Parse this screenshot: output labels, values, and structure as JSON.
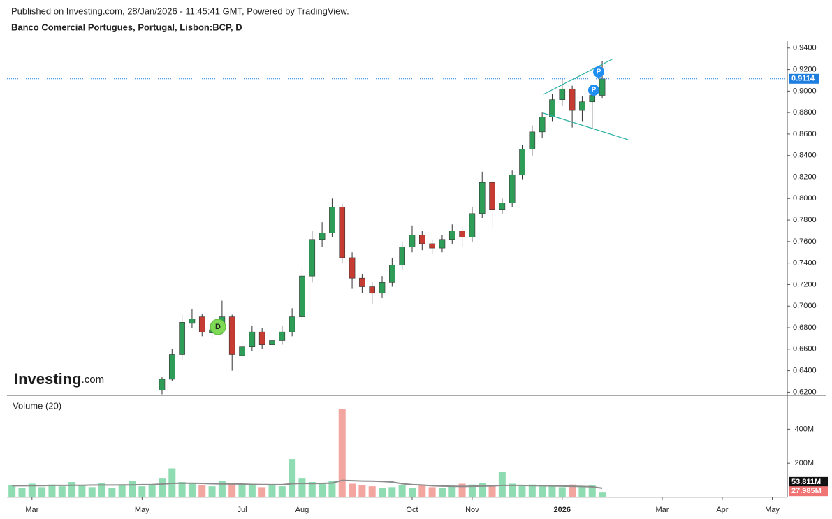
{
  "header": {
    "published": "Published on Investing.com, 28/Jan/2026 - 11:45:41 GMT, Powered by TradingView.",
    "symbol": "Banco Comercial Portugues, Portugal, Lisbon:BCP, D"
  },
  "logo": {
    "brand": "Investing",
    "suffix": ".com"
  },
  "markers": [
    "D",
    "P",
    "P"
  ],
  "chart_data": [
    {
      "type": "candlestick",
      "ylim": [
        0.617,
        0.947
      ],
      "yticks": [
        {
          "value": 0.62,
          "label": "0.6200"
        },
        {
          "value": 0.64,
          "label": "0.6400"
        },
        {
          "value": 0.66,
          "label": "0.6600"
        },
        {
          "value": 0.68,
          "label": "0.6800"
        },
        {
          "value": 0.7,
          "label": "0.7000"
        },
        {
          "value": 0.72,
          "label": "0.7200"
        },
        {
          "value": 0.74,
          "label": "0.7400"
        },
        {
          "value": 0.76,
          "label": "0.7600"
        },
        {
          "value": 0.78,
          "label": "0.7800"
        },
        {
          "value": 0.8,
          "label": "0.8000"
        },
        {
          "value": 0.82,
          "label": "0.8200"
        },
        {
          "value": 0.84,
          "label": "0.8400"
        },
        {
          "value": 0.86,
          "label": "0.8600"
        },
        {
          "value": 0.88,
          "label": "0.8800"
        },
        {
          "value": 0.9,
          "label": "0.9000"
        },
        {
          "value": 0.92,
          "label": "0.9200"
        },
        {
          "value": 0.94,
          "label": "0.9400"
        }
      ],
      "up_color": "#2e9d57",
      "down_color": "#c63b32",
      "last": {
        "value": 0.9114,
        "label": "0.9114",
        "color": "#1f7fe0"
      },
      "open": [
        null,
        null,
        null,
        null,
        null,
        null,
        null,
        null,
        null,
        null,
        null,
        null,
        null,
        null,
        null,
        0.622,
        0.632,
        0.655,
        0.684,
        0.69,
        0.675,
        0.678,
        0.69,
        0.654,
        0.662,
        0.676,
        0.664,
        0.668,
        0.676,
        0.69,
        0.728,
        0.762,
        0.768,
        0.792,
        0.745,
        0.726,
        0.718,
        0.712,
        0.722,
        0.738,
        0.755,
        0.766,
        0.758,
        0.754,
        0.762,
        0.77,
        0.764,
        0.786,
        0.815,
        0.79,
        0.796,
        0.822,
        0.846,
        0.862,
        0.876,
        0.892,
        0.902,
        0.882,
        0.89,
        0.896,
        null,
        null,
        null,
        null,
        null,
        null,
        null,
        null,
        null,
        null,
        null,
        null,
        null,
        null,
        null,
        null,
        null,
        null
      ],
      "high": [
        null,
        null,
        null,
        null,
        null,
        null,
        null,
        null,
        null,
        null,
        null,
        null,
        null,
        null,
        null,
        0.634,
        0.66,
        0.692,
        0.697,
        0.693,
        0.684,
        0.705,
        0.692,
        0.668,
        0.682,
        0.68,
        0.672,
        0.682,
        0.698,
        0.735,
        0.77,
        0.778,
        0.8,
        0.795,
        0.75,
        0.73,
        0.722,
        0.728,
        0.745,
        0.76,
        0.775,
        0.77,
        0.762,
        0.766,
        0.776,
        0.774,
        0.792,
        0.825,
        0.818,
        0.8,
        0.826,
        0.85,
        0.868,
        0.88,
        0.897,
        0.912,
        0.905,
        0.895,
        0.902,
        0.928,
        null,
        null,
        null,
        null,
        null,
        null,
        null,
        null,
        null,
        null,
        null,
        null,
        null,
        null,
        null,
        null,
        null,
        null
      ],
      "low": [
        null,
        null,
        null,
        null,
        null,
        null,
        null,
        null,
        null,
        null,
        null,
        null,
        null,
        null,
        null,
        0.618,
        0.63,
        0.65,
        0.68,
        0.672,
        0.67,
        0.674,
        0.64,
        0.65,
        0.658,
        0.66,
        0.66,
        0.664,
        0.672,
        0.686,
        0.722,
        0.755,
        0.764,
        0.74,
        0.716,
        0.712,
        0.702,
        0.708,
        0.718,
        0.734,
        0.75,
        0.752,
        0.748,
        0.75,
        0.758,
        0.755,
        0.76,
        0.782,
        0.772,
        0.786,
        0.792,
        0.818,
        0.84,
        0.856,
        0.872,
        0.886,
        0.866,
        0.872,
        0.865,
        0.893,
        null,
        null,
        null,
        null,
        null,
        null,
        null,
        null,
        null,
        null,
        null,
        null,
        null,
        null,
        null,
        null,
        null,
        null
      ],
      "close": [
        null,
        null,
        null,
        null,
        null,
        null,
        null,
        null,
        null,
        null,
        null,
        null,
        null,
        null,
        null,
        0.632,
        0.655,
        0.685,
        0.688,
        0.676,
        0.678,
        0.69,
        0.655,
        0.662,
        0.676,
        0.664,
        0.668,
        0.676,
        0.69,
        0.728,
        0.762,
        0.768,
        0.792,
        0.745,
        0.726,
        0.718,
        0.712,
        0.722,
        0.738,
        0.755,
        0.766,
        0.758,
        0.754,
        0.762,
        0.77,
        0.764,
        0.786,
        0.815,
        0.79,
        0.796,
        0.822,
        0.846,
        0.862,
        0.876,
        0.892,
        0.902,
        0.882,
        0.89,
        0.896,
        0.9114,
        null,
        null,
        null,
        null,
        null,
        null,
        null,
        null,
        null,
        null,
        null,
        null,
        null,
        null,
        null,
        null,
        null,
        null
      ]
    },
    {
      "type": "bar",
      "title": "Volume (20)",
      "categories": [
        null,
        null,
        "Mar",
        null,
        null,
        null,
        null,
        null,
        null,
        null,
        null,
        null,
        null,
        "May",
        null,
        null,
        null,
        null,
        null,
        null,
        null,
        null,
        null,
        "Jul",
        null,
        null,
        null,
        null,
        null,
        "Aug",
        null,
        null,
        null,
        null,
        null,
        null,
        null,
        null,
        null,
        null,
        "Oct",
        null,
        null,
        null,
        null,
        null,
        "Nov",
        null,
        null,
        null,
        null,
        null,
        null,
        null,
        null,
        "2026",
        null,
        null,
        null,
        null,
        null,
        null,
        null,
        null,
        null,
        "Mar",
        null,
        null,
        null,
        null,
        null,
        "Apr",
        null,
        null,
        null,
        null,
        "May",
        null
      ],
      "ylim": [
        0,
        590000000
      ],
      "yticks": [
        {
          "value": 200000000,
          "label": "200M"
        },
        {
          "value": 400000000,
          "label": "400M"
        }
      ],
      "up_color": "#8fdcb2",
      "down_color": "#f3a5a0",
      "ma_color": "#8c8c8c",
      "values": [
        70000000,
        55000000,
        80000000,
        60000000,
        75000000,
        65000000,
        90000000,
        70000000,
        60000000,
        85000000,
        55000000,
        70000000,
        95000000,
        65000000,
        75000000,
        110000000,
        170000000,
        90000000,
        80000000,
        70000000,
        65000000,
        95000000,
        80000000,
        75000000,
        70000000,
        60000000,
        75000000,
        65000000,
        225000000,
        110000000,
        90000000,
        85000000,
        95000000,
        520000000,
        80000000,
        70000000,
        65000000,
        55000000,
        60000000,
        70000000,
        55000000,
        75000000,
        60000000,
        55000000,
        65000000,
        80000000,
        75000000,
        85000000,
        70000000,
        150000000,
        80000000,
        70000000,
        75000000,
        65000000,
        70000000,
        60000000,
        75000000,
        65000000,
        70000000,
        27985000,
        null,
        null,
        null,
        null,
        null,
        null,
        null,
        null,
        null,
        null,
        null,
        null,
        null,
        null,
        null,
        null,
        null,
        null
      ],
      "value_labels": {
        "59": "27.985M"
      },
      "ma_values": [
        68000000,
        68000000,
        69000000,
        69000000,
        70000000,
        70000000,
        71000000,
        71000000,
        72000000,
        72000000,
        72000000,
        73000000,
        73000000,
        74000000,
        75000000,
        78000000,
        82000000,
        83000000,
        83000000,
        82000000,
        80000000,
        79000000,
        79000000,
        78000000,
        76000000,
        75000000,
        74000000,
        74000000,
        80000000,
        82000000,
        81000000,
        82000000,
        84000000,
        100000000,
        98000000,
        96000000,
        95000000,
        93000000,
        90000000,
        80000000,
        75000000,
        72000000,
        68000000,
        66000000,
        65000000,
        64000000,
        65000000,
        66000000,
        67000000,
        70000000,
        70000000,
        70000000,
        69000000,
        68000000,
        67000000,
        66000000,
        65000000,
        64000000,
        62000000,
        53811000,
        null,
        null,
        null,
        null,
        null,
        null,
        null,
        null,
        null,
        null,
        null,
        null,
        null,
        null,
        null,
        null,
        null,
        null
      ],
      "ma_value_labels": {
        "59": "53.811M"
      }
    }
  ]
}
